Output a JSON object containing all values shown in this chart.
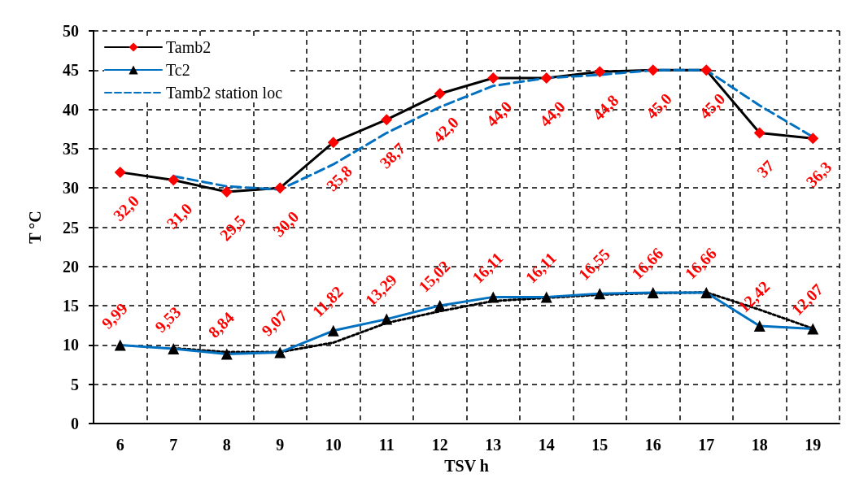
{
  "chart_data": {
    "type": "line",
    "xlabel": "TSV h",
    "ylabel": "T °C",
    "categories": [
      "6",
      "7",
      "8",
      "9",
      "10",
      "11",
      "12",
      "13",
      "14",
      "15",
      "16",
      "17",
      "18",
      "19"
    ],
    "ylim": [
      0,
      50
    ],
    "yticks": [
      0,
      5,
      10,
      15,
      20,
      25,
      30,
      35,
      40,
      45,
      50
    ],
    "grid": true,
    "legend": "top left",
    "series": [
      {
        "name": "Tamb2",
        "color": "#000000",
        "marker": "diamond",
        "values": [
          32.0,
          31.0,
          29.5,
          30.0,
          35.8,
          38.7,
          42.0,
          44.0,
          44.0,
          44.8,
          45.0,
          45.0,
          37,
          36.3
        ],
        "value_labels": [
          "32,0",
          "31,0",
          "29,5",
          "30,0",
          "35,8",
          "38,7",
          "42,0",
          "44,0",
          "44,0",
          "44,8",
          "45,0",
          "45,0",
          "37",
          "36,3"
        ]
      },
      {
        "name": "Tc2",
        "color": "#0070c0",
        "marker": "triangle",
        "values": [
          9.99,
          9.53,
          8.84,
          9.07,
          11.82,
          13.29,
          15.02,
          16.11,
          16.11,
          16.55,
          16.66,
          16.66,
          12.42,
          12.07
        ],
        "value_labels": [
          "9,99",
          "9,53",
          "8,84",
          "9,07",
          "11,82",
          "13,29",
          "15,02",
          "16,11",
          "16,11",
          "16,55",
          "16,66",
          "16,66",
          "12,42",
          "12,07"
        ]
      },
      {
        "name": "Tamb2 station loc",
        "color": "#0070c0",
        "line_style": "dashed",
        "marker": "none",
        "values": [
          null,
          31.5,
          30.2,
          29.8,
          33,
          37,
          40.3,
          43,
          44,
          44.4,
          45,
          45,
          40.5,
          36.5
        ]
      },
      {
        "type": "line",
        "color": "#000000",
        "line_style": "dotted",
        "values": [
          null,
          9.6,
          9.1,
          9.1,
          10.3,
          12.8,
          14.3,
          15.6,
          16.0,
          16.4,
          16.6,
          16.7,
          14.5,
          12.1
        ]
      }
    ]
  }
}
